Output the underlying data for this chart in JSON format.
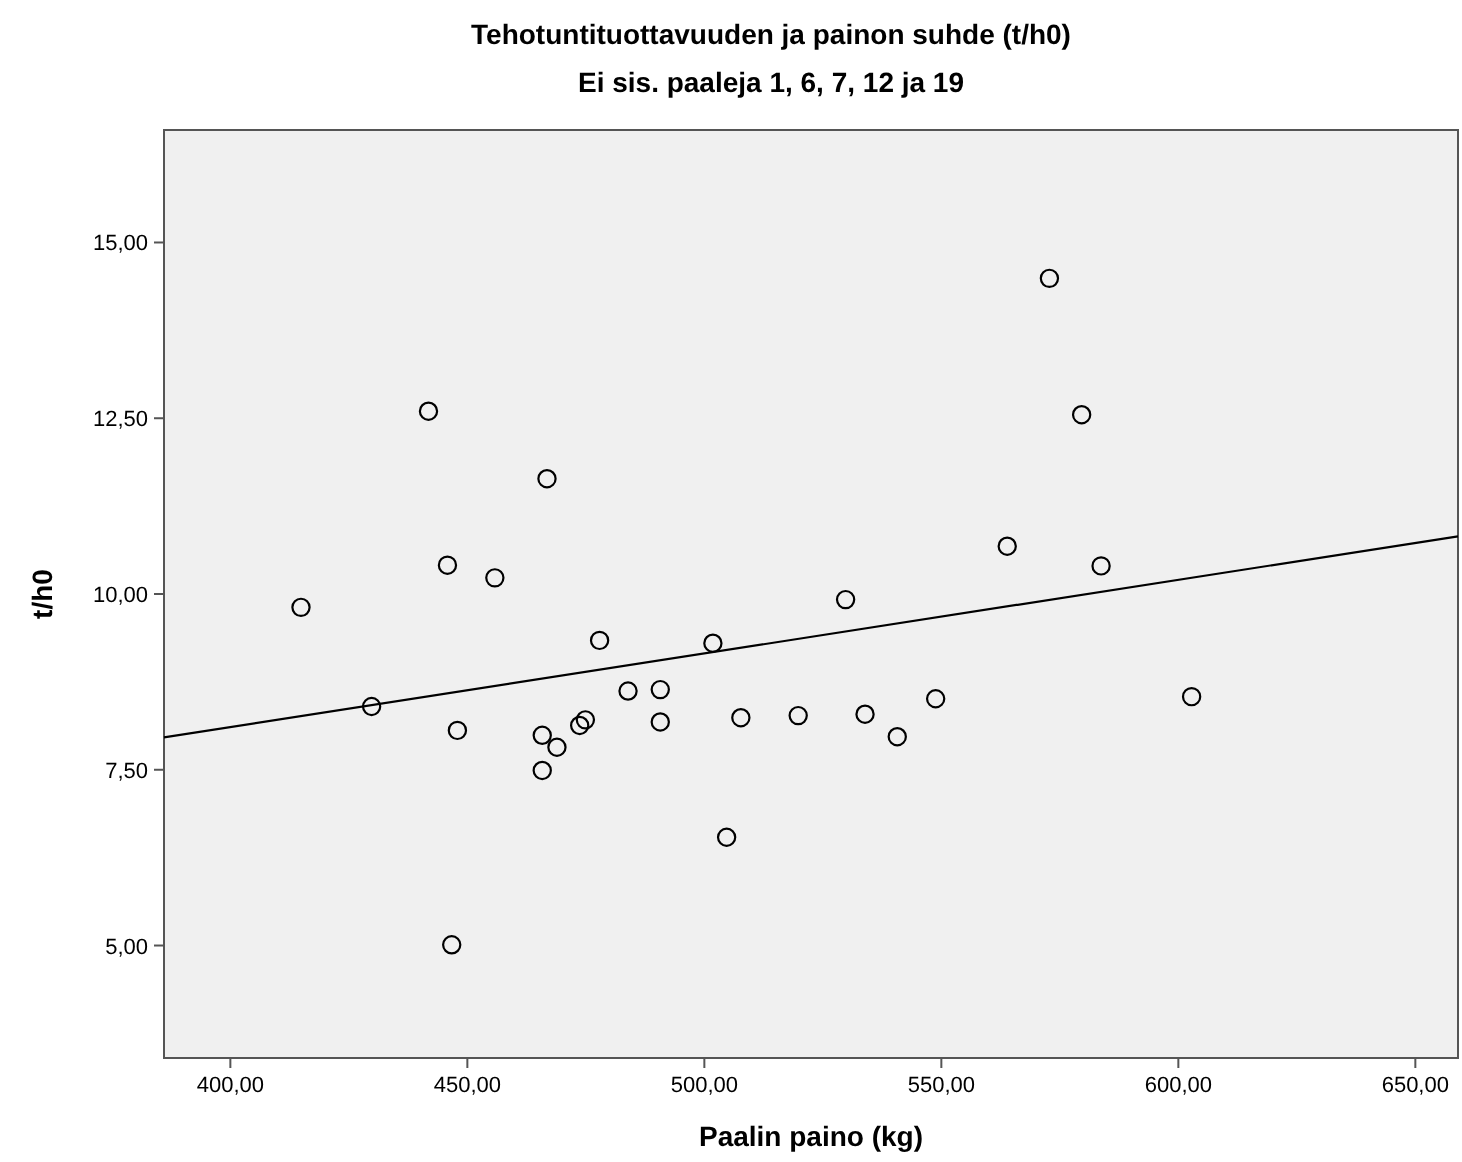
{
  "chart_data": {
    "type": "scatter",
    "title": "Tehotuntituottavuuden ja painon suhde (t/h0)",
    "subtitle": "Ei sis. paaleja 1, 6, 7, 12 ja 19",
    "xlabel": "Paalin paino (kg)",
    "ylabel": "t/h0",
    "xlim": [
      386,
      659
    ],
    "ylim": [
      3.4,
      16.6
    ],
    "xticks": [
      {
        "value": 400,
        "label": "400,00"
      },
      {
        "value": 450,
        "label": "450,00"
      },
      {
        "value": 500,
        "label": "500,00"
      },
      {
        "value": 550,
        "label": "550,00"
      },
      {
        "value": 600,
        "label": "600,00"
      },
      {
        "value": 650,
        "label": "650,00"
      }
    ],
    "yticks": [
      {
        "value": 5,
        "label": "5,00"
      },
      {
        "value": 7.5,
        "label": "7,50"
      },
      {
        "value": 10,
        "label": "10,00"
      },
      {
        "value": 12.5,
        "label": "12,50"
      },
      {
        "value": 15,
        "label": "15,00"
      }
    ],
    "grid": false,
    "series": [
      {
        "color": "#000000",
        "marker": "circle",
        "x": [
          414.9,
          429.8,
          441.8,
          445.8,
          446.7,
          447.9,
          455.8,
          465.8,
          465.8,
          466.8,
          468.9,
          473.7,
          474.9,
          477.9,
          483.9,
          490.7,
          490.7,
          501.8,
          504.7,
          507.7,
          519.8,
          529.8,
          533.9,
          540.7,
          548.8,
          563.9,
          572.8,
          579.6,
          583.7,
          602.8
        ],
        "values": [
          9.81,
          8.4,
          12.6,
          10.41,
          5.01,
          8.06,
          10.23,
          7.99,
          7.49,
          11.64,
          7.82,
          8.13,
          8.21,
          9.34,
          8.62,
          8.64,
          8.18,
          9.3,
          6.54,
          8.24,
          8.27,
          9.92,
          8.29,
          7.97,
          8.51,
          10.68,
          14.49,
          12.55,
          10.4,
          8.54
        ]
      },
      {
        "type": "line",
        "color": "#000000",
        "line_style": "solid",
        "marker": "none",
        "x": [
          386,
          659
        ],
        "values": [
          7.96,
          10.82
        ]
      }
    ]
  }
}
